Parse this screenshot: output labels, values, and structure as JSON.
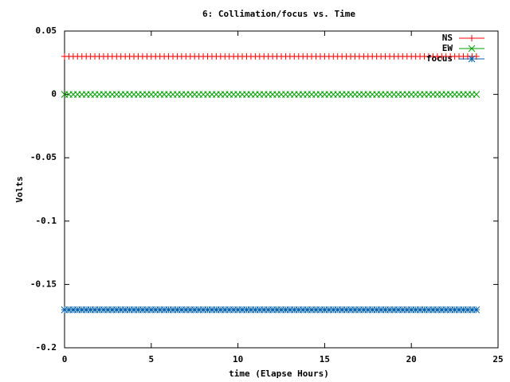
{
  "chart_data": {
    "type": "scatter",
    "title": "6: Collimation/focus vs. Time",
    "x_label": "time (Elapse Hours)",
    "y_label": "Volts",
    "x": [
      0,
      0.25,
      0.5,
      0.75,
      1,
      1.25,
      1.5,
      1.75,
      2,
      2.25,
      2.5,
      2.75,
      3,
      3.25,
      3.5,
      3.75,
      4,
      4.25,
      4.5,
      4.75,
      5,
      5.25,
      5.5,
      5.75,
      6,
      6.25,
      6.5,
      6.75,
      7,
      7.25,
      7.5,
      7.75,
      8,
      8.25,
      8.5,
      8.75,
      9,
      9.25,
      9.5,
      9.75,
      10,
      10.25,
      10.5,
      10.75,
      11,
      11.25,
      11.5,
      11.75,
      12,
      12.25,
      12.5,
      12.75,
      13,
      13.25,
      13.5,
      13.75,
      14,
      14.25,
      14.5,
      14.75,
      15,
      15.25,
      15.5,
      15.75,
      16,
      16.25,
      16.5,
      16.75,
      17,
      17.25,
      17.5,
      17.75,
      18,
      18.25,
      18.5,
      18.75,
      19,
      19.25,
      19.5,
      19.75,
      20,
      20.25,
      20.5,
      20.75,
      21,
      21.25,
      21.5,
      21.75,
      22,
      22.25,
      22.5,
      22.75,
      23,
      23.25,
      23.5,
      23.75
    ],
    "series": [
      {
        "name": "NS",
        "color": "#ff0000",
        "marker": "plus",
        "values": [
          0.03,
          0.03,
          0.03,
          0.03,
          0.03,
          0.03,
          0.03,
          0.03,
          0.03,
          0.03,
          0.03,
          0.03,
          0.03,
          0.03,
          0.03,
          0.03,
          0.03,
          0.03,
          0.03,
          0.03,
          0.03,
          0.03,
          0.03,
          0.03,
          0.03,
          0.03,
          0.03,
          0.03,
          0.03,
          0.03,
          0.03,
          0.03,
          0.03,
          0.03,
          0.03,
          0.03,
          0.03,
          0.03,
          0.03,
          0.03,
          0.03,
          0.03,
          0.03,
          0.03,
          0.03,
          0.03,
          0.03,
          0.03,
          0.03,
          0.03,
          0.03,
          0.03,
          0.03,
          0.03,
          0.03,
          0.03,
          0.03,
          0.03,
          0.03,
          0.03,
          0.03,
          0.03,
          0.03,
          0.03,
          0.03,
          0.03,
          0.03,
          0.03,
          0.03,
          0.03,
          0.03,
          0.03,
          0.03,
          0.03,
          0.03,
          0.03,
          0.03,
          0.03,
          0.03,
          0.03,
          0.03,
          0.03,
          0.03,
          0.03,
          0.03,
          0.03,
          0.03,
          0.03,
          0.03,
          0.03,
          0.03,
          0.03,
          0.03,
          0.03,
          0.03,
          0.03
        ]
      },
      {
        "name": "EW",
        "color": "#00a000",
        "marker": "cross",
        "values": [
          0,
          0,
          0,
          0,
          0,
          0,
          0,
          0,
          0,
          0,
          0,
          0,
          0,
          0,
          0,
          0,
          0,
          0,
          0,
          0,
          0,
          0,
          0,
          0,
          0,
          0,
          0,
          0,
          0,
          0,
          0,
          0,
          0,
          0,
          0,
          0,
          0,
          0,
          0,
          0,
          0,
          0,
          0,
          0,
          0,
          0,
          0,
          0,
          0,
          0,
          0,
          0,
          0,
          0,
          0,
          0,
          0,
          0,
          0,
          0,
          0,
          0,
          0,
          0,
          0,
          0,
          0,
          0,
          0,
          0,
          0,
          0,
          0,
          0,
          0,
          0,
          0,
          0,
          0,
          0,
          0,
          0,
          0,
          0,
          0,
          0,
          0,
          0,
          0,
          0,
          0,
          0,
          0,
          0,
          0,
          0
        ]
      },
      {
        "name": "focus",
        "color": "#0060ad",
        "marker": "star",
        "values": [
          -0.17,
          -0.17,
          -0.17,
          -0.17,
          -0.17,
          -0.17,
          -0.17,
          -0.17,
          -0.17,
          -0.17,
          -0.17,
          -0.17,
          -0.17,
          -0.17,
          -0.17,
          -0.17,
          -0.17,
          -0.17,
          -0.17,
          -0.17,
          -0.17,
          -0.17,
          -0.17,
          -0.17,
          -0.17,
          -0.17,
          -0.17,
          -0.17,
          -0.17,
          -0.17,
          -0.17,
          -0.17,
          -0.17,
          -0.17,
          -0.17,
          -0.17,
          -0.17,
          -0.17,
          -0.17,
          -0.17,
          -0.17,
          -0.17,
          -0.17,
          -0.17,
          -0.17,
          -0.17,
          -0.17,
          -0.17,
          -0.17,
          -0.17,
          -0.17,
          -0.17,
          -0.17,
          -0.17,
          -0.17,
          -0.17,
          -0.17,
          -0.17,
          -0.17,
          -0.17,
          -0.17,
          -0.17,
          -0.17,
          -0.17,
          -0.17,
          -0.17,
          -0.17,
          -0.17,
          -0.17,
          -0.17,
          -0.17,
          -0.17,
          -0.17,
          -0.17,
          -0.17,
          -0.17,
          -0.17,
          -0.17,
          -0.17,
          -0.17,
          -0.17,
          -0.17,
          -0.17,
          -0.17,
          -0.17,
          -0.17,
          -0.17,
          -0.17,
          -0.17,
          -0.17,
          -0.17,
          -0.17,
          -0.17,
          -0.17,
          -0.17,
          -0.17
        ]
      }
    ],
    "xlim": [
      0,
      25
    ],
    "xticks": [
      0,
      5,
      10,
      15,
      20,
      25
    ],
    "ylim": [
      -0.2,
      0.05
    ],
    "yticks": [
      0.05,
      0,
      -0.05,
      -0.1,
      -0.15,
      -0.2
    ],
    "grid": false,
    "legend": "top-right"
  }
}
